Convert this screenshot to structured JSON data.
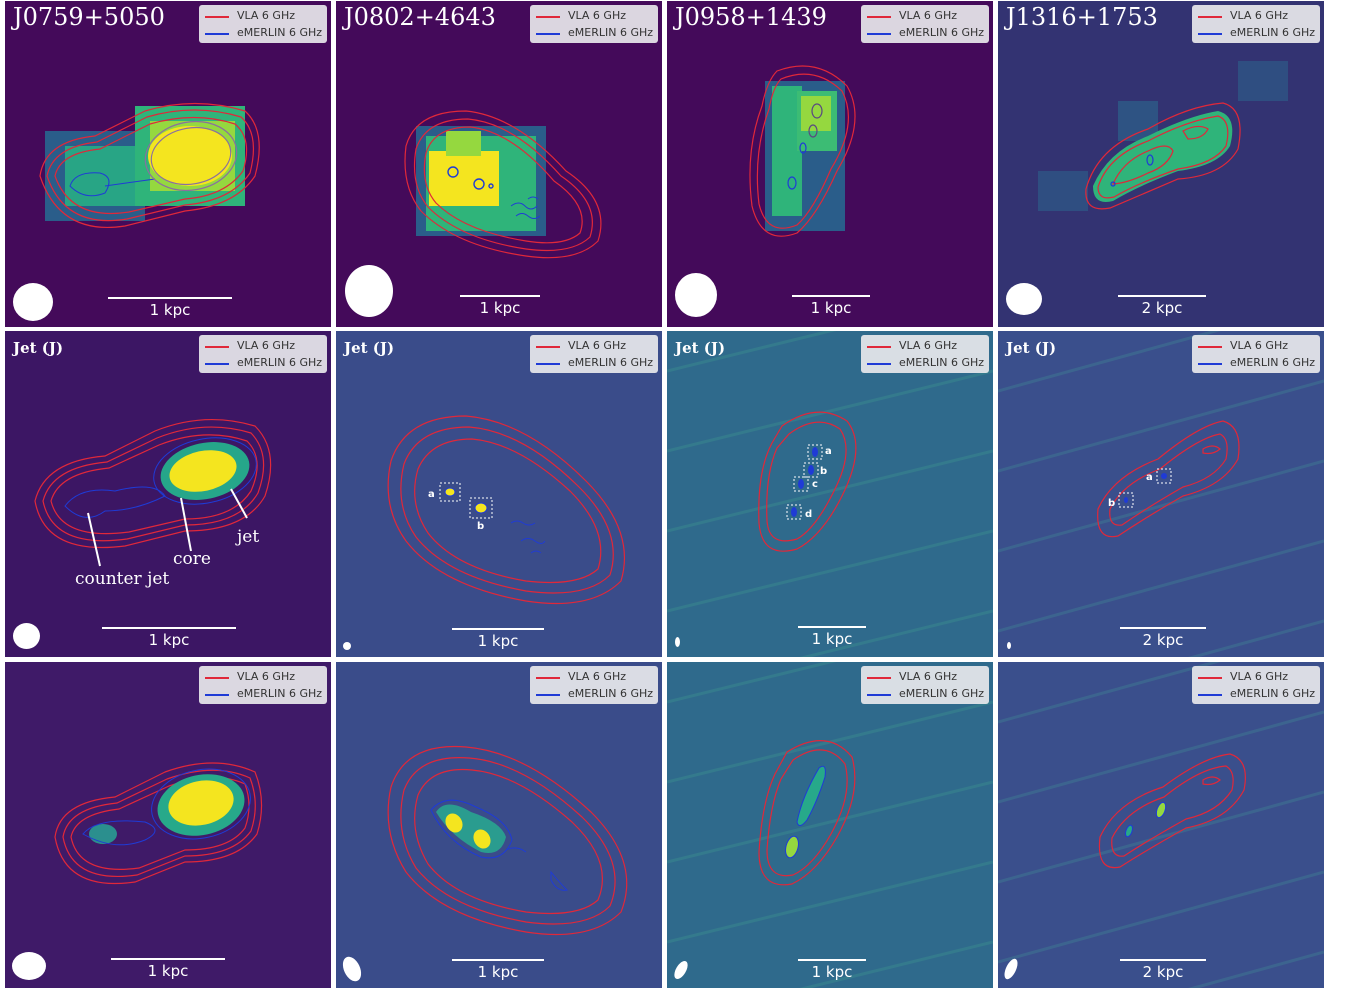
{
  "legend": {
    "vla": "VLA 6 GHz",
    "emerlin": "eMERLIN 6 GHz",
    "vla_color": "#e0283a",
    "emerlin_color": "#1f3bd6"
  },
  "colormap": "viridis",
  "rows": [
    {
      "panels": [
        {
          "title": "J0759+5050",
          "scale": "1 kpc"
        },
        {
          "title": "J0802+4643",
          "scale": "1 kpc"
        },
        {
          "title": "J0958+1439",
          "scale": "1 kpc"
        },
        {
          "title": "J1316+1753",
          "scale": "2 kpc"
        }
      ]
    },
    {
      "panels": [
        {
          "tag": "Jet (J)",
          "scale": "1 kpc",
          "annotations": [
            "counter jet",
            "core",
            "jet"
          ]
        },
        {
          "tag": "Jet (J)",
          "scale": "1 kpc",
          "components": [
            "a",
            "b"
          ]
        },
        {
          "tag": "Jet (J)",
          "scale": "1 kpc",
          "components": [
            "a",
            "b",
            "c",
            "d"
          ]
        },
        {
          "tag": "Jet (J)",
          "scale": "2 kpc",
          "components": [
            "a",
            "b"
          ]
        }
      ]
    },
    {
      "panels": [
        {
          "scale": "1 kpc"
        },
        {
          "scale": "1 kpc"
        },
        {
          "scale": "1 kpc"
        },
        {
          "scale": "2 kpc"
        }
      ]
    }
  ]
}
